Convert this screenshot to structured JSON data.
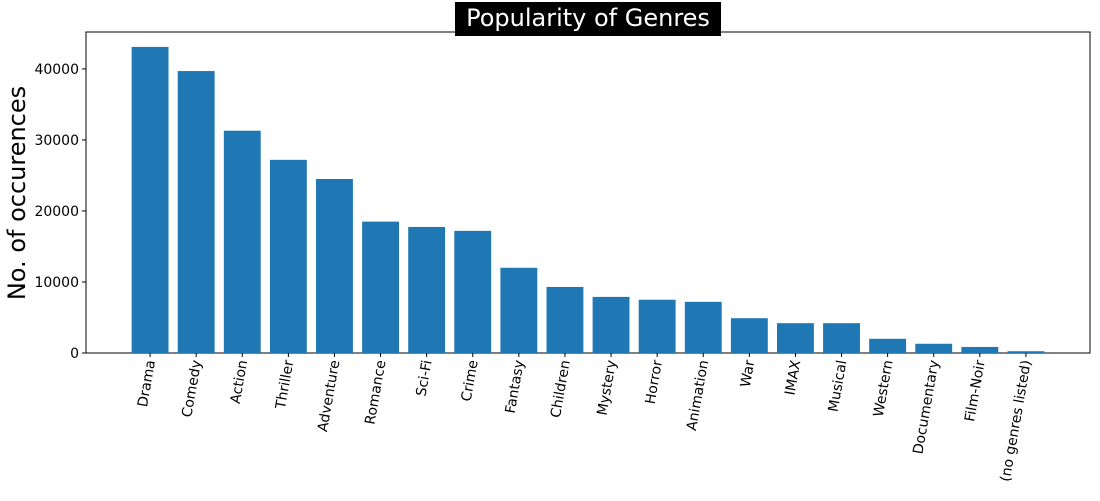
{
  "chart_data": {
    "type": "bar",
    "title": "Popularity of Genres",
    "ylabel": "No. of occurences",
    "categories": [
      "Drama",
      "Comedy",
      "Action",
      "Thriller",
      "Adventure",
      "Romance",
      "Sci-Fi",
      "Crime",
      "Fantasy",
      "Children",
      "Mystery",
      "Horror",
      "Animation",
      "War",
      "IMAX",
      "Musical",
      "Western",
      "Documentary",
      "Film-Noir",
      "(no genres listed)"
    ],
    "values": [
      43100,
      39700,
      31300,
      27200,
      24500,
      18500,
      17750,
      17200,
      12000,
      9300,
      7900,
      7500,
      7200,
      4900,
      4200,
      4200,
      2000,
      1300,
      850,
      250
    ],
    "color": "#1f77b4",
    "ylim": [
      0,
      45200
    ],
    "yticks": [
      0,
      10000,
      20000,
      30000,
      40000
    ]
  }
}
